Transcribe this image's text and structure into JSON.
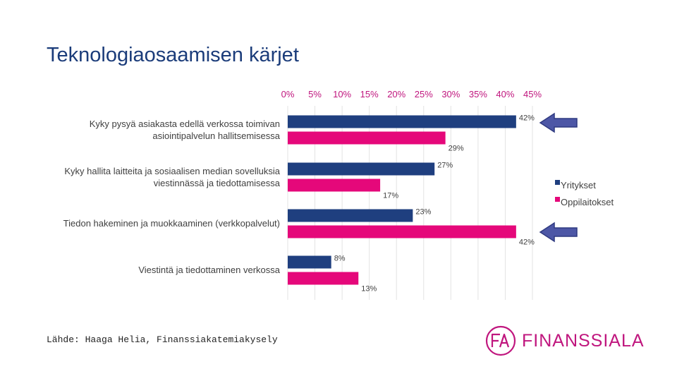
{
  "slide": {
    "title": "Teknologiaosaamisen kärjet",
    "source": "Lähde: Haaga Helia, Finanssiakatemiakysely",
    "logo_text": "FINANSSIALA",
    "logo_mark": "FA"
  },
  "colors": {
    "Yritykset": "#1f3f7f",
    "Oppilaitokset": "#e5087a",
    "tick": "#c0167e",
    "arrow": "#4d57a6"
  },
  "chart_data": {
    "type": "bar",
    "orientation": "horizontal",
    "categories": [
      [
        "Kyky pysyä asiakasta edellä verkossa toimivan",
        "asiointipalvelun hallitsemisessa"
      ],
      [
        "Kyky hallita laitteita ja sosiaalisen median sovelluksia",
        "viestinnässä ja tiedottamisessa"
      ],
      [
        "Tiedon hakeminen ja muokkaaminen (verkkopalvelut)"
      ],
      [
        "Viestintä ja tiedottaminen verkossa"
      ]
    ],
    "series": [
      {
        "name": "Yritykset",
        "values": [
          42,
          27,
          23,
          8
        ],
        "labels": [
          "42%",
          "27%",
          "23%",
          "8%"
        ]
      },
      {
        "name": "Oppilaitokset",
        "values": [
          29,
          17,
          42,
          13
        ],
        "labels": [
          "29%",
          "17%",
          "42%",
          "13%"
        ]
      }
    ],
    "xlim": [
      0,
      45
    ],
    "ticks": [
      0,
      5,
      10,
      15,
      20,
      25,
      30,
      35,
      40,
      45
    ],
    "tick_labels": [
      "0%",
      "5%",
      "10%",
      "15%",
      "20%",
      "25%",
      "30%",
      "35%",
      "40%",
      "45%"
    ],
    "grid": true,
    "legend_position": "right",
    "annotations": [
      {
        "type": "arrow",
        "points_to": "Yritykset 42%"
      },
      {
        "type": "arrow",
        "points_to": "Oppilaitokset 42%"
      }
    ]
  }
}
